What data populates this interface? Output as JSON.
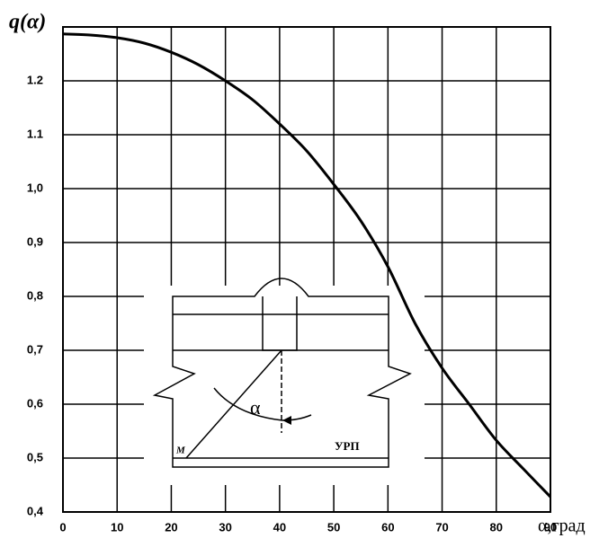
{
  "chart_data": {
    "type": "line",
    "title": "q(α)",
    "x_label": "α,град",
    "x": [
      0,
      5,
      10,
      15,
      20,
      25,
      30,
      35,
      40,
      45,
      50,
      55,
      60,
      65,
      70,
      75,
      80,
      85,
      90
    ],
    "values": [
      1.287,
      1.285,
      1.28,
      1.27,
      1.253,
      1.23,
      1.2,
      1.165,
      1.12,
      1.07,
      1.008,
      0.94,
      0.855,
      0.75,
      0.667,
      0.6,
      0.533,
      0.48,
      0.428
    ],
    "color": "#000000",
    "xlim": [
      0,
      90
    ],
    "ylim": [
      0.4,
      1.3
    ],
    "xticks": [
      0,
      10,
      20,
      30,
      40,
      50,
      60,
      70,
      80,
      90
    ],
    "yticks": [
      {
        "value": 0.4,
        "label": "0,4"
      },
      {
        "value": 0.5,
        "label": "0,5"
      },
      {
        "value": 0.6,
        "label": "0,6"
      },
      {
        "value": 0.7,
        "label": "0,7"
      },
      {
        "value": 0.8,
        "label": "0,8"
      },
      {
        "value": 0.9,
        "label": "0,9"
      },
      {
        "value": 1.0,
        "label": "1,0"
      },
      1.1,
      1.2
    ],
    "grid": true,
    "diagram_labels": {
      "angle": "α",
      "point": "М",
      "device": "УРП"
    }
  }
}
